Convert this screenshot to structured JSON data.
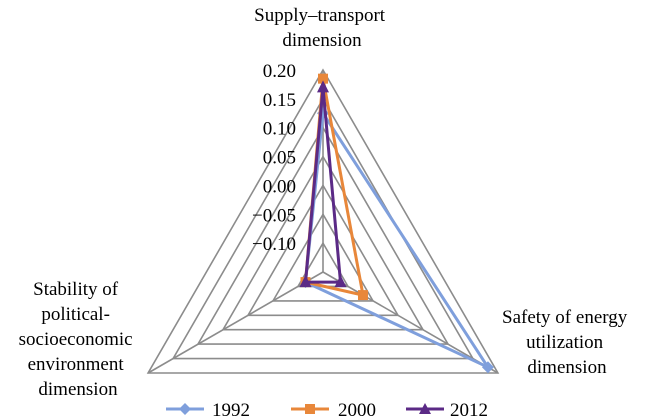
{
  "chart_data": {
    "type": "radar",
    "axes": [
      {
        "key": "supply",
        "label_lines": [
          "Supply–transport",
          "dimension"
        ]
      },
      {
        "key": "safety",
        "label_lines": [
          "Safety of energy",
          "utilization",
          "dimension"
        ]
      },
      {
        "key": "stability",
        "label_lines": [
          "Stability of",
          "political-",
          "socioeconomic",
          "environment",
          "dimension"
        ]
      }
    ],
    "ticks": [
      "0.20",
      "0.15",
      "0.10",
      "0.05",
      "0.00",
      "−0.05",
      "−0.10"
    ],
    "range": [
      -0.15,
      0.2
    ],
    "tick_step": 0.05,
    "grid": true,
    "legend_position": "bottom",
    "series": [
      {
        "name": "1992",
        "color": "#7f9fdc",
        "marker": "diamond",
        "values": [
          0.125,
          0.18,
          -0.115
        ]
      },
      {
        "name": "2000",
        "color": "#e8873a",
        "marker": "square",
        "values": [
          0.185,
          -0.07,
          -0.115
        ]
      },
      {
        "name": "2012",
        "color": "#5b2a86",
        "marker": "triangle",
        "values": [
          0.17,
          -0.115,
          -0.115
        ]
      }
    ]
  }
}
